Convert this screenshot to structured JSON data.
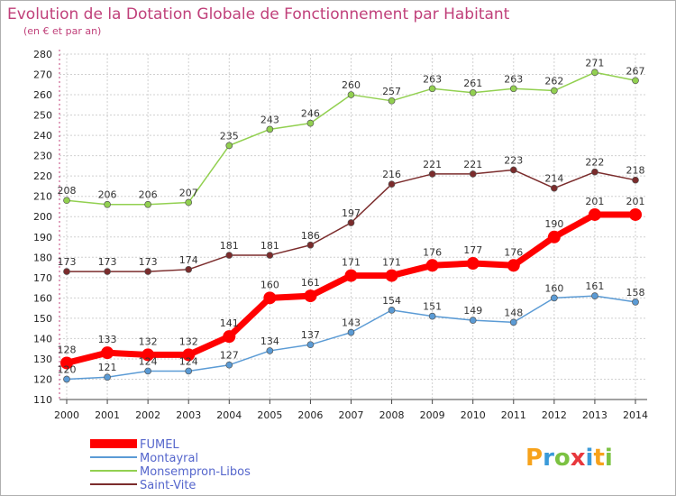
{
  "chart_data": {
    "type": "line",
    "title": "Evolution de la Dotation Globale de Fonctionnement par Habitant",
    "subtitle": "(en € et par an)",
    "xlabel": "",
    "ylabel": "",
    "x": [
      "2000",
      "2001",
      "2002",
      "2003",
      "2004",
      "2005",
      "2006",
      "2007",
      "2008",
      "2009",
      "2010",
      "2011",
      "2012",
      "2013",
      "2014"
    ],
    "ylim": [
      110,
      280
    ],
    "yticks": [
      110,
      120,
      130,
      140,
      150,
      160,
      170,
      180,
      190,
      200,
      210,
      220,
      230,
      240,
      250,
      260,
      270,
      280
    ],
    "grid": true,
    "legend_position": "bottom-left",
    "series": [
      {
        "name": "Montayral",
        "color": "#5b9bd5",
        "values": [
          120,
          121,
          124,
          124,
          127,
          134,
          137,
          143,
          154,
          151,
          149,
          148,
          160,
          161,
          158
        ]
      },
      {
        "name": "Monsempron-Libos",
        "color": "#92d050",
        "values": [
          208,
          206,
          206,
          207,
          235,
          243,
          246,
          260,
          257,
          263,
          261,
          263,
          262,
          271,
          267
        ]
      },
      {
        "name": "Saint-Vite",
        "color": "#7b2c2c",
        "values": [
          173,
          173,
          173,
          174,
          181,
          181,
          186,
          197,
          216,
          221,
          221,
          223,
          214,
          222,
          218
        ]
      },
      {
        "name": "FUMEL",
        "color": "#ff0000",
        "values": [
          128,
          133,
          132,
          132,
          141,
          160,
          161,
          171,
          171,
          176,
          177,
          176,
          190,
          201,
          201
        ]
      }
    ],
    "legend_order": [
      "FUMEL",
      "Montayral",
      "Monsempron-Libos",
      "Saint-Vite"
    ]
  },
  "logo": {
    "letters": [
      "P",
      "r",
      "o",
      "x",
      "i",
      "t",
      "i"
    ]
  }
}
